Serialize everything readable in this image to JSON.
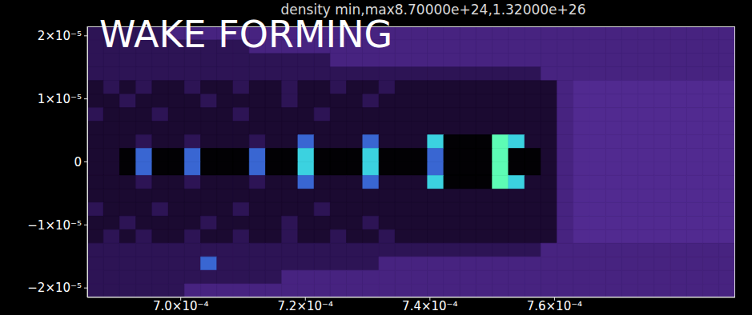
{
  "chart_data": {
    "type": "heatmap",
    "title": "density min,max8.70000e+24,1.32000e+26",
    "annotation": "WAKE FORMING",
    "xlim": [
      0.000685,
      0.000789
    ],
    "xticks": [
      {
        "value": 0.0007,
        "label": "7.0×10⁻⁴"
      },
      {
        "value": 0.00072,
        "label": "7.2×10⁻⁴"
      },
      {
        "value": 0.00074,
        "label": "7.4×10⁻⁴"
      },
      {
        "value": 0.00076,
        "label": "7.6×10⁻⁴"
      }
    ],
    "ylim": [
      -2.15e-05,
      2.15e-05
    ],
    "yticks": [
      {
        "value": -2e-05,
        "label": "−2×10⁻⁵"
      },
      {
        "value": -1e-05,
        "label": "−1×10⁻⁵"
      },
      0,
      {
        "value": 1e-05,
        "label": "1×10⁻⁵"
      },
      {
        "value": 2e-05,
        "label": "2×10⁻⁵"
      }
    ],
    "heatmap": {
      "color_range": [
        8.7e+24,
        1.32e+26
      ],
      "x": [
        0.000685,
        0.0006876,
        0.0006902,
        0.0006928,
        0.0006954,
        0.000698,
        0.0007006,
        0.0007032,
        0.0007058,
        0.0007084,
        0.000711,
        0.0007136,
        0.0007162,
        0.0007188,
        0.0007214,
        0.000724,
        0.0007266,
        0.0007292,
        0.0007318,
        0.0007344,
        0.000737,
        0.0007396,
        0.0007422,
        0.0007448,
        0.0007474,
        0.00075,
        0.0007526,
        0.0007552,
        0.0007578,
        0.0007604,
        0.000763,
        0.0007656,
        0.0007682,
        0.0007708,
        0.0007734,
        0.000776,
        0.0007786,
        0.0007812,
        0.0007838,
        0.0007864,
        0.000789
      ],
      "y": [
        2.15e-05,
        1.935e-05,
        1.72e-05,
        1.505e-05,
        1.29e-05,
        1.075e-05,
        8.6e-06,
        6.45e-06,
        4.3e-06,
        2.15e-06,
        0,
        -2.15e-06,
        -4.3e-06,
        -6.45e-06,
        -8.6e-06,
        -1.075e-05,
        -1.29e-05,
        -1.505e-05,
        -1.72e-05,
        -1.935e-05,
        -2.15e-05
      ],
      "z": [
        [
          3.5e+25,
          3.5e+25,
          3.5e+25,
          3.5e+25,
          3.5e+25,
          4.8e+25,
          4.8e+25,
          4.8e+25,
          4.8e+25,
          4.8e+25,
          4.8e+25,
          4.8e+25,
          4.8e+25,
          4.8e+25,
          4.8e+25,
          4.8e+25,
          4.8e+25,
          4.8e+25,
          4.8e+25,
          4.8e+25,
          4.8e+25,
          4.8e+25,
          4.8e+25,
          4.8e+25,
          4.8e+25,
          4.8e+25,
          4.8e+25,
          4.8e+25,
          4.8e+25,
          4.8e+25,
          4.8e+25,
          4.8e+25,
          4.8e+25,
          4.8e+25,
          4.8e+25,
          4.8e+25,
          4.8e+25,
          4.8e+25,
          4.8e+25,
          4.8e+25
        ],
        [
          3.5e+25,
          3.5e+25,
          3.5e+25,
          3.5e+25,
          3.5e+25,
          3.5e+25,
          3.5e+25,
          3.5e+25,
          3.5e+25,
          3.5e+25,
          4.8e+25,
          4.8e+25,
          4.8e+25,
          4.8e+25,
          4.8e+25,
          4.8e+25,
          4.8e+25,
          4.8e+25,
          4.8e+25,
          4.8e+25,
          4.8e+25,
          4.8e+25,
          4.8e+25,
          4.8e+25,
          4.8e+25,
          4.8e+25,
          4.8e+25,
          4.8e+25,
          4.8e+25,
          4.8e+25,
          4.8e+25,
          4.8e+25,
          4.8e+25,
          4.8e+25,
          4.8e+25,
          4.8e+25,
          4.8e+25,
          4.8e+25,
          4.8e+25,
          4.8e+25
        ],
        [
          3.5e+25,
          3.5e+25,
          3.5e+25,
          3.5e+25,
          3.5e+25,
          3.5e+25,
          3.5e+25,
          3.5e+25,
          3.5e+25,
          3.5e+25,
          3.5e+25,
          3.5e+25,
          3.5e+25,
          3.5e+25,
          3.5e+25,
          4.8e+25,
          4.8e+25,
          4.8e+25,
          4.8e+25,
          4.8e+25,
          4.8e+25,
          4.8e+25,
          4.8e+25,
          4.8e+25,
          4.8e+25,
          4.8e+25,
          4.8e+25,
          4.8e+25,
          4.8e+25,
          4.8e+25,
          4.8e+25,
          4.8e+25,
          4.8e+25,
          4.8e+25,
          4.8e+25,
          4.8e+25,
          4.8e+25,
          4.8e+25,
          4.8e+25,
          4.8e+25
        ],
        [
          3.5e+25,
          3.5e+25,
          3.5e+25,
          3.5e+25,
          3.5e+25,
          3.5e+25,
          3.5e+25,
          3.5e+25,
          3.5e+25,
          3.5e+25,
          3.5e+25,
          3.5e+25,
          3.5e+25,
          3.5e+25,
          3.5e+25,
          3.5e+25,
          3.5e+25,
          3.5e+25,
          3.5e+25,
          3.5e+25,
          3.5e+25,
          3.5e+25,
          3.5e+25,
          3.5e+25,
          3.5e+25,
          3.5e+25,
          3.5e+25,
          3.5e+25,
          4.8e+25,
          4.8e+25,
          4.8e+25,
          4.8e+25,
          4.8e+25,
          4.8e+25,
          4.8e+25,
          4.8e+25,
          4.8e+25,
          4.8e+25,
          4.8e+25,
          4.8e+25
        ],
        [
          2.5e+25,
          3.5e+25,
          2.5e+25,
          3.5e+25,
          2.5e+25,
          2.5e+25,
          3.5e+25,
          2.5e+25,
          2.5e+25,
          3.5e+25,
          2.5e+25,
          2.5e+25,
          3.5e+25,
          2.5e+25,
          2.5e+25,
          3.5e+25,
          2.5e+25,
          2.5e+25,
          3.5e+25,
          2.5e+25,
          2.5e+25,
          2.5e+25,
          2.5e+25,
          2.5e+25,
          2.5e+25,
          2.5e+25,
          2.5e+25,
          2.5e+25,
          2.5e+25,
          4.8e+25,
          5.3e+25,
          5.3e+25,
          5.3e+25,
          5.3e+25,
          5.3e+25,
          5.3e+25,
          5.3e+25,
          5.3e+25,
          5.3e+25,
          5.3e+25
        ],
        [
          2.5e+25,
          2.5e+25,
          3.5e+25,
          2.5e+25,
          2.5e+25,
          2.5e+25,
          2.5e+25,
          3.5e+25,
          2.5e+25,
          2.5e+25,
          2.5e+25,
          2.5e+25,
          3.5e+25,
          2.5e+25,
          2.5e+25,
          2.5e+25,
          2.5e+25,
          3.5e+25,
          2.5e+25,
          2.5e+25,
          2.5e+25,
          2.5e+25,
          2.5e+25,
          2.5e+25,
          2.5e+25,
          2.5e+25,
          2.5e+25,
          2.5e+25,
          2.5e+25,
          4.8e+25,
          5.3e+25,
          5.3e+25,
          5.3e+25,
          5.3e+25,
          5.3e+25,
          5.3e+25,
          5.3e+25,
          5.3e+25,
          5.3e+25,
          5.3e+25
        ],
        [
          3.5e+25,
          2.5e+25,
          2.5e+25,
          2.5e+25,
          3.5e+25,
          2.5e+25,
          2.5e+25,
          2.5e+25,
          2.5e+25,
          3.5e+25,
          2.5e+25,
          2.5e+25,
          2.5e+25,
          2.5e+25,
          3.5e+25,
          2.5e+25,
          2.5e+25,
          2.5e+25,
          2.5e+25,
          2.5e+25,
          2.5e+25,
          2.5e+25,
          2.5e+25,
          2.5e+25,
          2.5e+25,
          2.5e+25,
          2.5e+25,
          2.5e+25,
          2.5e+25,
          4.8e+25,
          5.3e+25,
          5.3e+25,
          5.3e+25,
          5.3e+25,
          5.3e+25,
          5.3e+25,
          5.3e+25,
          5.3e+25,
          5.3e+25,
          5.3e+25
        ],
        [
          2.5e+25,
          2.5e+25,
          2.5e+25,
          2.5e+25,
          2.5e+25,
          2.5e+25,
          2.5e+25,
          2.5e+25,
          2.5e+25,
          2.5e+25,
          2.5e+25,
          2.5e+25,
          2.5e+25,
          2.5e+25,
          2.5e+25,
          2.5e+25,
          2.5e+25,
          2.5e+25,
          2.5e+25,
          2.5e+25,
          2.5e+25,
          2.5e+25,
          2.5e+25,
          2.5e+25,
          2.5e+25,
          2.5e+25,
          2.5e+25,
          2.5e+25,
          2.5e+25,
          4.8e+25,
          5.3e+25,
          5.3e+25,
          5.3e+25,
          5.3e+25,
          5.3e+25,
          5.3e+25,
          5.3e+25,
          5.3e+25,
          5.3e+25,
          5.3e+25
        ],
        [
          2.5e+25,
          2.5e+25,
          2.5e+25,
          3.5e+25,
          2.5e+25,
          2.5e+25,
          3.5e+25,
          2.5e+25,
          2.5e+25,
          2.5e+25,
          3.5e+25,
          2.5e+25,
          2.5e+25,
          8e+25,
          2.5e+25,
          2.5e+25,
          2.5e+25,
          8e+25,
          2.5e+25,
          2.5e+25,
          2.5e+25,
          1.1e+26,
          1e+25,
          1e+25,
          1e+25,
          1.3e+26,
          1.1e+26,
          2.5e+25,
          2.5e+25,
          4.8e+25,
          5.3e+25,
          5.3e+25,
          5.3e+25,
          5.3e+25,
          5.3e+25,
          5.3e+25,
          5.3e+25,
          5.3e+25,
          5.3e+25,
          5.3e+25
        ],
        [
          2.5e+25,
          2.5e+25,
          1e+25,
          8e+25,
          1e+25,
          1e+25,
          8e+25,
          1e+25,
          1e+25,
          1e+25,
          8e+25,
          1e+25,
          1e+25,
          1.1e+26,
          1e+25,
          1e+25,
          1e+25,
          1.1e+26,
          1e+25,
          1e+25,
          1e+25,
          8e+25,
          1e+25,
          1e+25,
          1e+25,
          1.3e+26,
          1e+25,
          1e+25,
          2.5e+25,
          4.8e+25,
          5.3e+25,
          5.3e+25,
          5.3e+25,
          5.3e+25,
          5.3e+25,
          5.3e+25,
          5.3e+25,
          5.3e+25,
          5.3e+25,
          5.3e+25
        ],
        [
          2.5e+25,
          2.5e+25,
          1e+25,
          8e+25,
          1e+25,
          1e+25,
          8e+25,
          1e+25,
          1e+25,
          1e+25,
          8e+25,
          1e+25,
          1e+25,
          1.1e+26,
          1e+25,
          1e+25,
          1e+25,
          1.1e+26,
          1e+25,
          1e+25,
          1e+25,
          8e+25,
          1e+25,
          1e+25,
          1e+25,
          1.3e+26,
          1e+25,
          1e+25,
          2.5e+25,
          4.8e+25,
          5.3e+25,
          5.3e+25,
          5.3e+25,
          5.3e+25,
          5.3e+25,
          5.3e+25,
          5.3e+25,
          5.3e+25,
          5.3e+25,
          5.3e+25
        ],
        [
          2.5e+25,
          2.5e+25,
          2.5e+25,
          3.5e+25,
          2.5e+25,
          2.5e+25,
          3.5e+25,
          2.5e+25,
          2.5e+25,
          2.5e+25,
          3.5e+25,
          2.5e+25,
          2.5e+25,
          8e+25,
          2.5e+25,
          2.5e+25,
          2.5e+25,
          8e+25,
          2.5e+25,
          2.5e+25,
          2.5e+25,
          1.1e+26,
          1e+25,
          1e+25,
          1e+25,
          1.3e+26,
          1.1e+26,
          2.5e+25,
          2.5e+25,
          4.8e+25,
          5.3e+25,
          5.3e+25,
          5.3e+25,
          5.3e+25,
          5.3e+25,
          5.3e+25,
          5.3e+25,
          5.3e+25,
          5.3e+25,
          5.3e+25
        ],
        [
          2.5e+25,
          2.5e+25,
          2.5e+25,
          2.5e+25,
          2.5e+25,
          2.5e+25,
          2.5e+25,
          2.5e+25,
          2.5e+25,
          2.5e+25,
          2.5e+25,
          2.5e+25,
          2.5e+25,
          2.5e+25,
          2.5e+25,
          2.5e+25,
          2.5e+25,
          2.5e+25,
          2.5e+25,
          2.5e+25,
          2.5e+25,
          2.5e+25,
          2.5e+25,
          2.5e+25,
          2.5e+25,
          2.5e+25,
          2.5e+25,
          2.5e+25,
          2.5e+25,
          4.8e+25,
          5.3e+25,
          5.3e+25,
          5.3e+25,
          5.3e+25,
          5.3e+25,
          5.3e+25,
          5.3e+25,
          5.3e+25,
          5.3e+25,
          5.3e+25
        ],
        [
          3.5e+25,
          2.5e+25,
          2.5e+25,
          2.5e+25,
          3.5e+25,
          2.5e+25,
          2.5e+25,
          2.5e+25,
          2.5e+25,
          3.5e+25,
          2.5e+25,
          2.5e+25,
          2.5e+25,
          2.5e+25,
          3.5e+25,
          2.5e+25,
          2.5e+25,
          2.5e+25,
          2.5e+25,
          2.5e+25,
          2.5e+25,
          2.5e+25,
          2.5e+25,
          2.5e+25,
          2.5e+25,
          2.5e+25,
          2.5e+25,
          2.5e+25,
          2.5e+25,
          4.8e+25,
          5.3e+25,
          5.3e+25,
          5.3e+25,
          5.3e+25,
          5.3e+25,
          5.3e+25,
          5.3e+25,
          5.3e+25,
          5.3e+25,
          5.3e+25
        ],
        [
          2.5e+25,
          2.5e+25,
          3.5e+25,
          2.5e+25,
          2.5e+25,
          2.5e+25,
          2.5e+25,
          3.5e+25,
          2.5e+25,
          2.5e+25,
          2.5e+25,
          2.5e+25,
          3.5e+25,
          2.5e+25,
          2.5e+25,
          2.5e+25,
          2.5e+25,
          3.5e+25,
          2.5e+25,
          2.5e+25,
          2.5e+25,
          2.5e+25,
          2.5e+25,
          2.5e+25,
          2.5e+25,
          2.5e+25,
          2.5e+25,
          2.5e+25,
          2.5e+25,
          4.8e+25,
          5.3e+25,
          5.3e+25,
          5.3e+25,
          5.3e+25,
          5.3e+25,
          5.3e+25,
          5.3e+25,
          5.3e+25,
          5.3e+25,
          5.3e+25
        ],
        [
          2.5e+25,
          3.5e+25,
          2.5e+25,
          3.5e+25,
          2.5e+25,
          2.5e+25,
          3.5e+25,
          2.5e+25,
          2.5e+25,
          3.5e+25,
          2.5e+25,
          2.5e+25,
          3.5e+25,
          2.5e+25,
          2.5e+25,
          3.5e+25,
          2.5e+25,
          2.5e+25,
          3.5e+25,
          2.5e+25,
          2.5e+25,
          2.5e+25,
          2.5e+25,
          2.5e+25,
          2.5e+25,
          2.5e+25,
          2.5e+25,
          2.5e+25,
          2.5e+25,
          4.8e+25,
          5.3e+25,
          5.3e+25,
          5.3e+25,
          5.3e+25,
          5.3e+25,
          5.3e+25,
          5.3e+25,
          5.3e+25,
          5.3e+25,
          5.3e+25
        ],
        [
          3.5e+25,
          3.5e+25,
          3.5e+25,
          3.5e+25,
          3.5e+25,
          3.5e+25,
          3.5e+25,
          3.5e+25,
          3.5e+25,
          3.5e+25,
          3.5e+25,
          3.5e+25,
          3.5e+25,
          3.5e+25,
          3.5e+25,
          3.5e+25,
          3.5e+25,
          3.5e+25,
          3.5e+25,
          3.5e+25,
          3.5e+25,
          3.5e+25,
          3.5e+25,
          3.5e+25,
          3.5e+25,
          3.5e+25,
          3.5e+25,
          3.5e+25,
          4.8e+25,
          4.8e+25,
          4.8e+25,
          4.8e+25,
          4.8e+25,
          4.8e+25,
          4.8e+25,
          4.8e+25,
          4.8e+25,
          4.8e+25,
          4.8e+25,
          4.8e+25
        ],
        [
          3.5e+25,
          3.5e+25,
          3.5e+25,
          3.5e+25,
          3.5e+25,
          3.5e+25,
          3.5e+25,
          8e+25,
          3.5e+25,
          3.5e+25,
          3.5e+25,
          3.5e+25,
          3.5e+25,
          3.5e+25,
          3.5e+25,
          3.5e+25,
          3.5e+25,
          3.5e+25,
          4.8e+25,
          4.8e+25,
          4.8e+25,
          4.8e+25,
          4.8e+25,
          4.8e+25,
          4.8e+25,
          4.8e+25,
          4.8e+25,
          4.8e+25,
          4.8e+25,
          4.8e+25,
          4.8e+25,
          4.8e+25,
          4.8e+25,
          4.8e+25,
          4.8e+25,
          4.8e+25,
          4.8e+25,
          4.8e+25,
          4.8e+25,
          4.8e+25
        ],
        [
          3.5e+25,
          3.5e+25,
          3.5e+25,
          3.5e+25,
          3.5e+25,
          3.5e+25,
          3.5e+25,
          3.5e+25,
          3.5e+25,
          3.5e+25,
          3.5e+25,
          3.5e+25,
          4.8e+25,
          4.8e+25,
          4.8e+25,
          4.8e+25,
          4.8e+25,
          4.8e+25,
          4.8e+25,
          4.8e+25,
          4.8e+25,
          4.8e+25,
          4.8e+25,
          4.8e+25,
          4.8e+25,
          4.8e+25,
          4.8e+25,
          4.8e+25,
          4.8e+25,
          4.8e+25,
          4.8e+25,
          4.8e+25,
          4.8e+25,
          4.8e+25,
          4.8e+25,
          4.8e+25,
          4.8e+25,
          4.8e+25,
          4.8e+25,
          4.8e+25
        ],
        [
          3.5e+25,
          3.5e+25,
          3.5e+25,
          3.5e+25,
          3.5e+25,
          3.5e+25,
          4.8e+25,
          4.8e+25,
          4.8e+25,
          4.8e+25,
          4.8e+25,
          4.8e+25,
          4.8e+25,
          4.8e+25,
          4.8e+25,
          4.8e+25,
          4.8e+25,
          4.8e+25,
          4.8e+25,
          4.8e+25,
          4.8e+25,
          4.8e+25,
          4.8e+25,
          4.8e+25,
          4.8e+25,
          4.8e+25,
          4.8e+25,
          4.8e+25,
          4.8e+25,
          4.8e+25,
          4.8e+25,
          4.8e+25,
          4.8e+25,
          4.8e+25,
          4.8e+25,
          4.8e+25,
          4.8e+25,
          4.8e+25,
          4.8e+25,
          4.8e+25
        ]
      ]
    }
  }
}
